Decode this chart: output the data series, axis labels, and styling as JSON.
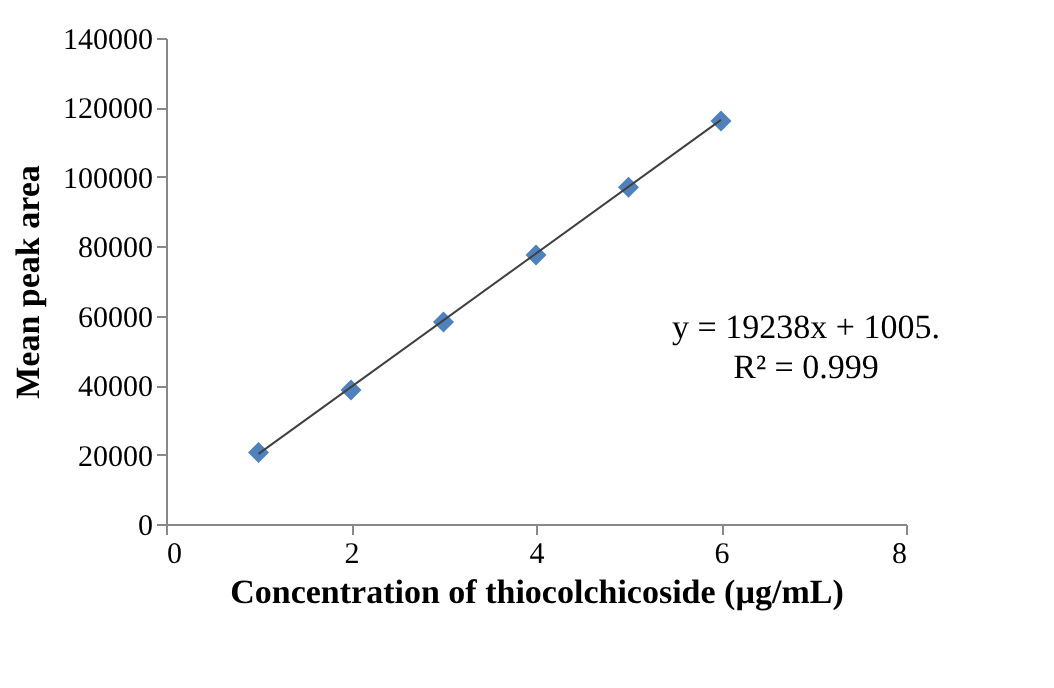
{
  "chart_data": {
    "type": "scatter",
    "xlabel": "Concentration of thiocolchicoside (µg/mL)",
    "ylabel": "Mean peak area",
    "xlim": [
      0,
      8
    ],
    "xticks": [
      0,
      2,
      4,
      6,
      8
    ],
    "ylim": [
      0,
      140000
    ],
    "yticks": [
      0,
      20000,
      40000,
      60000,
      80000,
      100000,
      120000,
      140000
    ],
    "grid": false,
    "marker": "diamond",
    "series": [
      {
        "color": "#4f81bd",
        "x": [
          1,
          2,
          3,
          4,
          5,
          6
        ],
        "values": [
          20600,
          38600,
          58200,
          77500,
          97000,
          116100
        ]
      },
      {
        "type": "line",
        "marker": "none",
        "color": "#404040",
        "x": [
          1,
          6
        ],
        "values": [
          20200,
          116400
        ]
      }
    ],
    "annotations": [
      "y = 19238x + 1005.",
      "R² = 0.999"
    ]
  }
}
